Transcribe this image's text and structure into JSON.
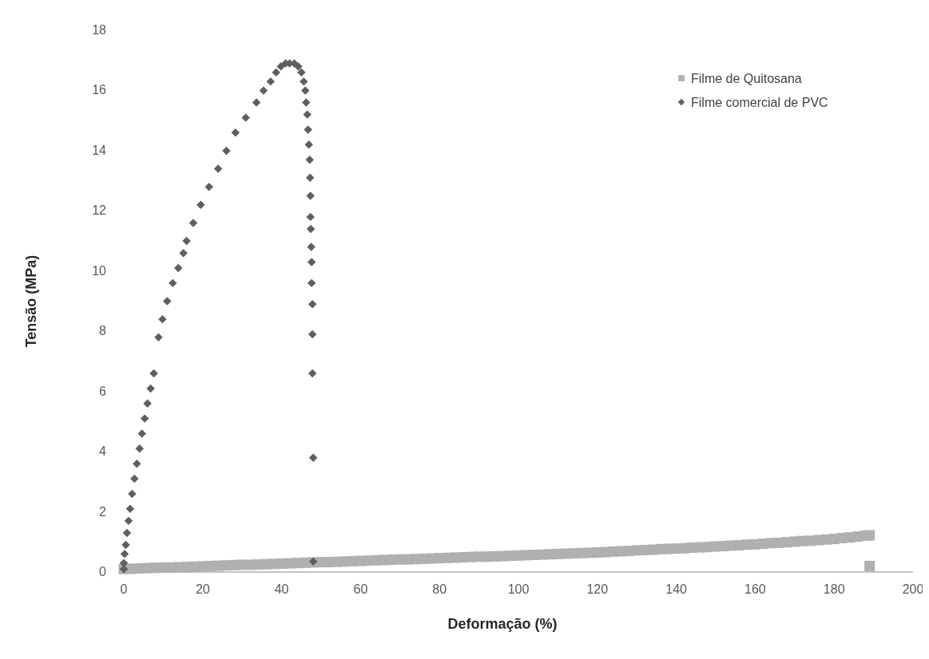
{
  "chart_data": {
    "type": "scatter",
    "xlabel": "Deformação (%)",
    "ylabel": "Tensão (MPa)",
    "xlim": [
      0,
      200
    ],
    "xticks": [
      0,
      20,
      40,
      60,
      80,
      100,
      120,
      140,
      160,
      180,
      200
    ],
    "ylim": [
      0,
      18
    ],
    "yticks": [
      0,
      2,
      4,
      6,
      8,
      10,
      12,
      14,
      16,
      18
    ],
    "grid": false,
    "legend": "top right",
    "series": [
      {
        "name": "Filme de Quitosana",
        "color": "#b0b0b0",
        "marker": "square",
        "x": [
          0,
          2,
          4,
          6,
          8,
          10,
          12,
          14,
          16,
          18,
          20,
          22,
          24,
          26,
          28,
          30,
          32,
          34,
          36,
          38,
          40,
          42,
          44,
          46,
          48,
          50,
          52,
          54,
          56,
          58,
          60,
          62,
          64,
          66,
          68,
          70,
          72,
          74,
          76,
          78,
          80,
          82,
          84,
          86,
          88,
          90,
          92,
          94,
          96,
          98,
          100,
          102,
          104,
          106,
          108,
          110,
          112,
          114,
          116,
          118,
          120,
          122,
          124,
          126,
          128,
          130,
          132,
          134,
          136,
          138,
          140,
          142,
          144,
          146,
          148,
          150,
          152,
          154,
          156,
          158,
          160,
          162,
          164,
          166,
          168,
          170,
          172,
          174,
          176,
          178,
          180,
          182,
          184,
          186,
          188,
          189,
          189
        ],
        "values": [
          0.1,
          0.11,
          0.12,
          0.13,
          0.14,
          0.15,
          0.15,
          0.16,
          0.17,
          0.18,
          0.19,
          0.2,
          0.21,
          0.22,
          0.23,
          0.24,
          0.24,
          0.25,
          0.26,
          0.27,
          0.28,
          0.29,
          0.3,
          0.31,
          0.32,
          0.33,
          0.33,
          0.34,
          0.35,
          0.36,
          0.37,
          0.38,
          0.39,
          0.4,
          0.41,
          0.42,
          0.42,
          0.43,
          0.44,
          0.45,
          0.46,
          0.47,
          0.48,
          0.49,
          0.5,
          0.51,
          0.51,
          0.52,
          0.53,
          0.54,
          0.55,
          0.56,
          0.57,
          0.58,
          0.59,
          0.6,
          0.61,
          0.62,
          0.63,
          0.64,
          0.65,
          0.66,
          0.68,
          0.69,
          0.7,
          0.72,
          0.73,
          0.74,
          0.76,
          0.77,
          0.78,
          0.79,
          0.81,
          0.82,
          0.83,
          0.85,
          0.86,
          0.88,
          0.89,
          0.91,
          0.92,
          0.94,
          0.96,
          0.97,
          0.99,
          1.01,
          1.03,
          1.04,
          1.06,
          1.08,
          1.1,
          1.13,
          1.15,
          1.18,
          1.21,
          1.22,
          0.2
        ]
      },
      {
        "name": "Filme comercial de PVC",
        "color": "#5f5f5f",
        "marker": "diamond",
        "x": [
          0,
          0,
          0.2,
          0.5,
          0.8,
          1.2,
          1.6,
          2.1,
          2.7,
          3.3,
          4,
          4.6,
          5.3,
          6,
          6.8,
          7.6,
          8.8,
          9.8,
          11,
          12.4,
          13.8,
          15.1,
          15.9,
          17.6,
          19.5,
          21.6,
          23.9,
          26,
          28.3,
          30.9,
          33.6,
          35.4,
          37.2,
          38.6,
          39.8,
          41,
          42,
          43.2,
          44.2,
          45,
          45.6,
          46,
          46.2,
          46.5,
          46.7,
          46.9,
          47.1,
          47.2,
          47.3,
          47.3,
          47.4,
          47.5,
          47.6,
          47.6,
          47.8,
          47.8,
          47.8,
          48,
          48
        ],
        "values": [
          0.1,
          0.3,
          0.6,
          0.9,
          1.3,
          1.7,
          2.1,
          2.6,
          3.1,
          3.6,
          4.1,
          4.6,
          5.1,
          5.6,
          6.1,
          6.6,
          7.8,
          8.4,
          9,
          9.6,
          10.1,
          10.6,
          11,
          11.6,
          12.2,
          12.8,
          13.4,
          14,
          14.6,
          15.1,
          15.6,
          16,
          16.3,
          16.6,
          16.8,
          16.9,
          16.9,
          16.9,
          16.8,
          16.6,
          16.3,
          16,
          15.6,
          15.2,
          14.7,
          14.2,
          13.7,
          13.1,
          12.5,
          11.8,
          11.4,
          10.8,
          10.3,
          9.6,
          8.9,
          7.9,
          6.6,
          3.8,
          0.35
        ]
      }
    ]
  }
}
